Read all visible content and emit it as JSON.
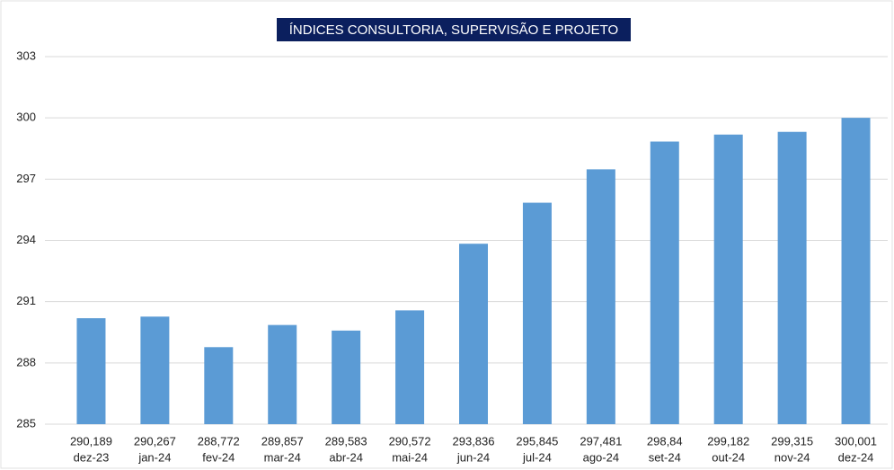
{
  "chart_data": {
    "type": "bar",
    "title": "ÍNDICES CONSULTORIA, SUPERVISÃO E PROJETO",
    "categories": [
      "dez-23",
      "jan-24",
      "fev-24",
      "mar-24",
      "abr-24",
      "mai-24",
      "jun-24",
      "jul-24",
      "ago-24",
      "set-24",
      "out-24",
      "nov-24",
      "dez-24"
    ],
    "values": [
      290.189,
      290.267,
      288.772,
      289.857,
      289.583,
      290.572,
      293.836,
      295.845,
      297.481,
      298.84,
      299.182,
      299.315,
      300.001
    ],
    "value_labels": [
      "290,189",
      "290,267",
      "288,772",
      "289,857",
      "289,583",
      "290,572",
      "293,836",
      "295,845",
      "297,481",
      "298,84",
      "299,182",
      "299,315",
      "300,001"
    ],
    "color": "#5b9bd5",
    "ylim": [
      285,
      303
    ],
    "yticks": [
      285,
      288,
      291,
      294,
      297,
      300,
      303
    ],
    "grid": true
  }
}
